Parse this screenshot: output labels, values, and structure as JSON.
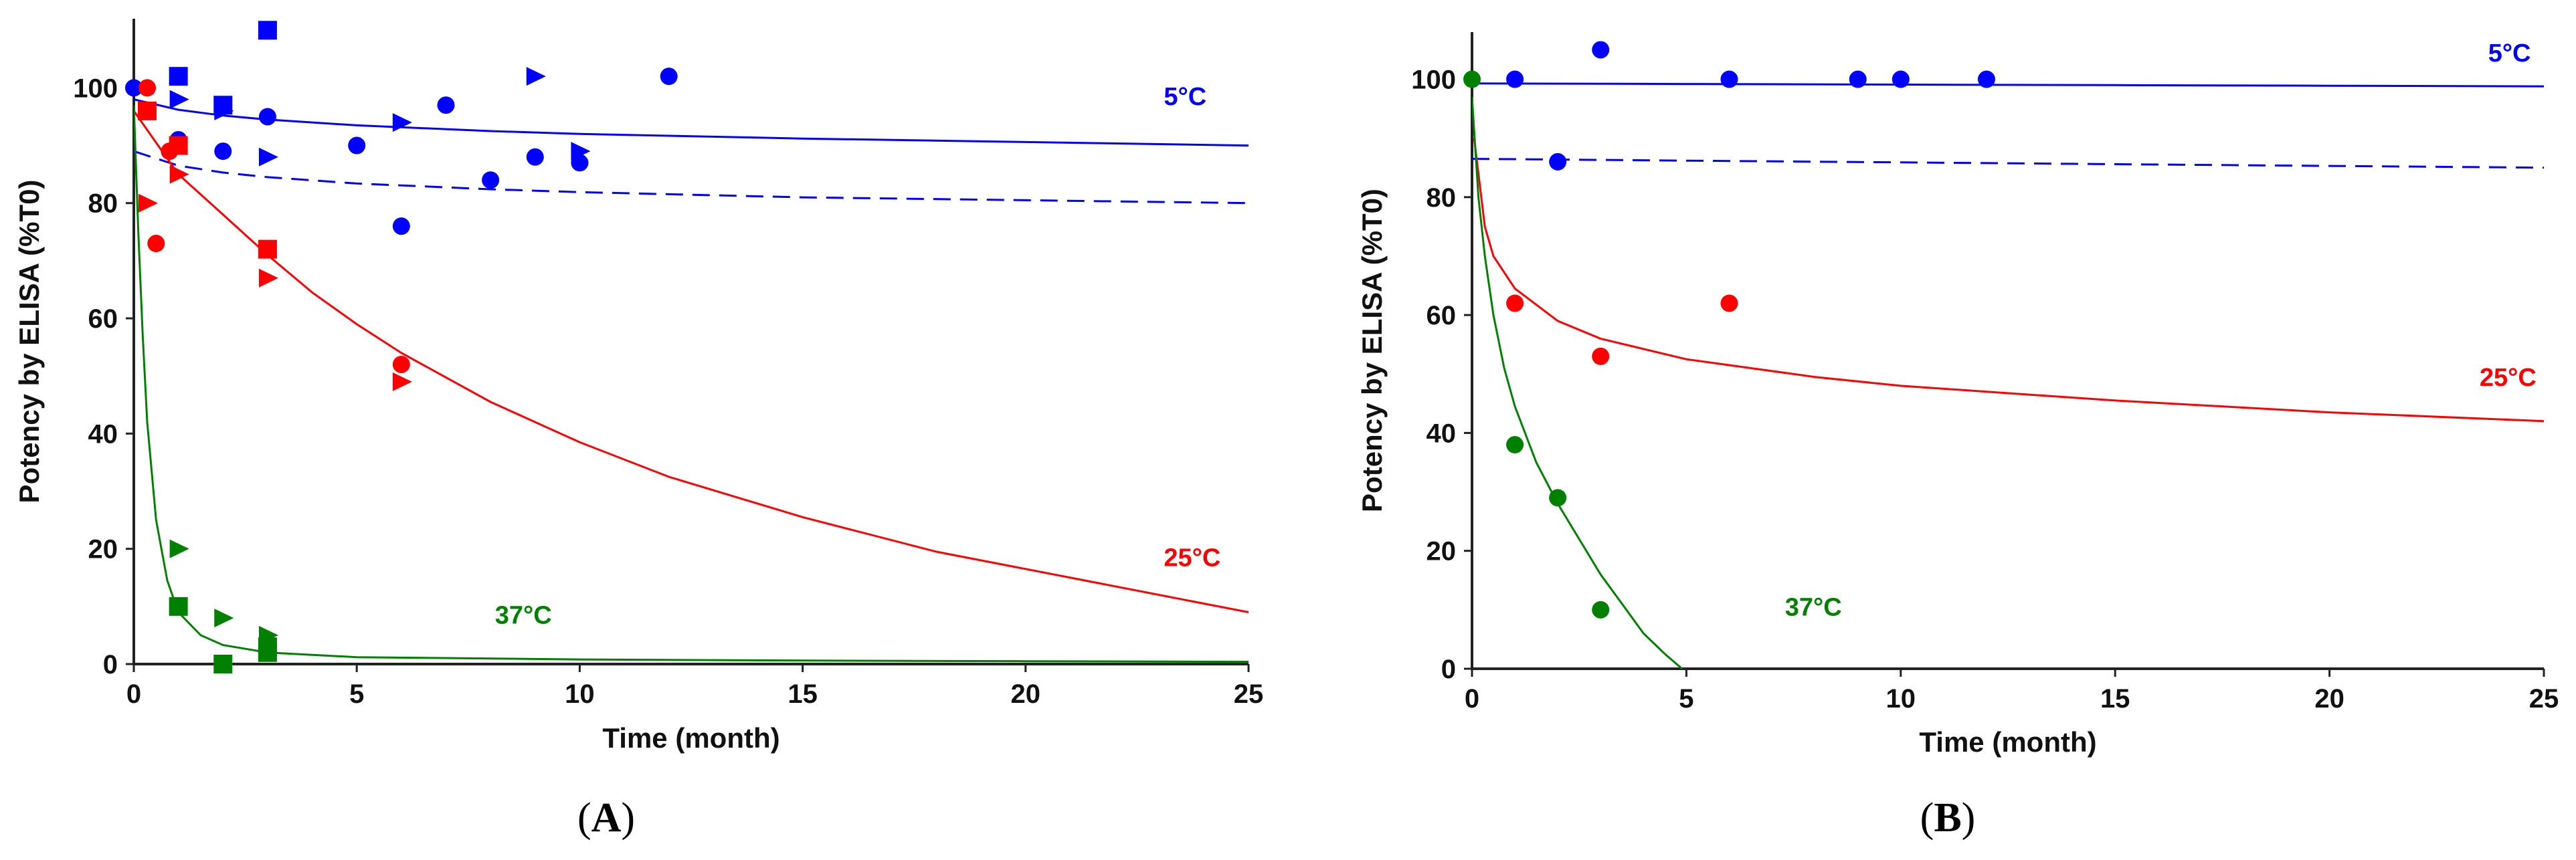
{
  "chart_data": [
    {
      "panel_label": "A",
      "type": "scatter",
      "xlabel": "Time (month)",
      "ylabel": "Potency by ELISA (%T0)",
      "xlim": [
        0,
        25
      ],
      "ylim": [
        0,
        112
      ],
      "xticks": [
        0,
        5,
        10,
        15,
        20,
        25
      ],
      "yticks": [
        0,
        20,
        40,
        60,
        80,
        100
      ],
      "grid": false,
      "series": [
        {
          "name": "5°C",
          "color": "#0000ff",
          "points": [
            {
              "marker": "circle",
              "x": 0,
              "y": 100
            },
            {
              "marker": "circle",
              "x": 1,
              "y": 91
            },
            {
              "marker": "circle",
              "x": 2,
              "y": 89
            },
            {
              "marker": "circle",
              "x": 3,
              "y": 95
            },
            {
              "marker": "circle",
              "x": 5,
              "y": 90
            },
            {
              "marker": "circle",
              "x": 6,
              "y": 76
            },
            {
              "marker": "circle",
              "x": 7,
              "y": 97
            },
            {
              "marker": "circle",
              "x": 8,
              "y": 84
            },
            {
              "marker": "circle",
              "x": 9,
              "y": 88
            },
            {
              "marker": "circle",
              "x": 10,
              "y": 87
            },
            {
              "marker": "circle",
              "x": 12,
              "y": 102
            },
            {
              "marker": "square",
              "x": 1,
              "y": 102
            },
            {
              "marker": "square",
              "x": 2,
              "y": 97
            },
            {
              "marker": "square",
              "x": 3,
              "y": 110
            },
            {
              "marker": "triangle",
              "x": 1,
              "y": 98
            },
            {
              "marker": "triangle",
              "x": 2,
              "y": 96
            },
            {
              "marker": "triangle",
              "x": 3,
              "y": 88
            },
            {
              "marker": "triangle",
              "x": 6,
              "y": 94
            },
            {
              "marker": "triangle",
              "x": 9,
              "y": 102
            },
            {
              "marker": "triangle",
              "x": 10,
              "y": 89
            }
          ],
          "fit": [
            {
              "style": "solid",
              "points": [
                [
                  0,
                  98
                ],
                [
                  1,
                  96.2
                ],
                [
                  2,
                  95.2
                ],
                [
                  3,
                  94.5
                ],
                [
                  5,
                  93.5
                ],
                [
                  8,
                  92.5
                ],
                [
                  10,
                  92
                ],
                [
                  15,
                  91.2
                ],
                [
                  20,
                  90.6
                ],
                [
                  25,
                  90
                ]
              ]
            },
            {
              "style": "dashed",
              "points": [
                [
                  0,
                  89
                ],
                [
                  1,
                  86.5
                ],
                [
                  2,
                  85.3
                ],
                [
                  3,
                  84.5
                ],
                [
                  5,
                  83.4
                ],
                [
                  8,
                  82.4
                ],
                [
                  10,
                  81.9
                ],
                [
                  15,
                  81
                ],
                [
                  20,
                  80.5
                ],
                [
                  25,
                  80
                ]
              ]
            }
          ]
        },
        {
          "name": "25°C",
          "color": "#ff0000",
          "points": [
            {
              "marker": "circle",
              "x": 0.3,
              "y": 100
            },
            {
              "marker": "circle",
              "x": 0.5,
              "y": 73
            },
            {
              "marker": "circle",
              "x": 0.8,
              "y": 89
            },
            {
              "marker": "circle",
              "x": 6,
              "y": 52
            },
            {
              "marker": "square",
              "x": 0.3,
              "y": 96
            },
            {
              "marker": "square",
              "x": 1,
              "y": 90
            },
            {
              "marker": "square",
              "x": 3,
              "y": 72
            },
            {
              "marker": "triangle",
              "x": 0.3,
              "y": 80
            },
            {
              "marker": "triangle",
              "x": 1,
              "y": 85
            },
            {
              "marker": "triangle",
              "x": 3,
              "y": 67
            },
            {
              "marker": "triangle",
              "x": 6,
              "y": 49
            }
          ],
          "fit": [
            {
              "style": "solid",
              "points": [
                [
                  0,
                  96
                ],
                [
                  1,
                  85
                ],
                [
                  2,
                  78
                ],
                [
                  3,
                  71
                ],
                [
                  4,
                  64.5
                ],
                [
                  5,
                  59
                ],
                [
                  6,
                  54
                ],
                [
                  8,
                  45.5
                ],
                [
                  10,
                  38.5
                ],
                [
                  12,
                  32.5
                ],
                [
                  15,
                  25.5
                ],
                [
                  18,
                  19.5
                ],
                [
                  20,
                  16.5
                ],
                [
                  22,
                  13.5
                ],
                [
                  25,
                  9
                ]
              ]
            }
          ]
        },
        {
          "name": "37°C",
          "color": "#008000",
          "points": [
            {
              "marker": "square",
              "x": 1,
              "y": 10
            },
            {
              "marker": "square",
              "x": 2,
              "y": 0
            },
            {
              "marker": "square",
              "x": 3,
              "y": 2
            },
            {
              "marker": "square",
              "x": 3,
              "y": 3
            },
            {
              "marker": "triangle",
              "x": 1,
              "y": 20
            },
            {
              "marker": "triangle",
              "x": 2,
              "y": 8
            },
            {
              "marker": "triangle",
              "x": 3,
              "y": 5
            }
          ],
          "fit": [
            {
              "style": "solid",
              "points": [
                [
                  0,
                  97
                ],
                [
                  0.1,
                  75
                ],
                [
                  0.2,
                  57
                ],
                [
                  0.3,
                  42
                ],
                [
                  0.5,
                  25
                ],
                [
                  0.75,
                  14.5
                ],
                [
                  1,
                  9
                ],
                [
                  1.5,
                  5
                ],
                [
                  2,
                  3.3
                ],
                [
                  3,
                  2
                ],
                [
                  5,
                  1.2
                ],
                [
                  10,
                  0.8
                ],
                [
                  15,
                  0.6
                ],
                [
                  20,
                  0.5
                ],
                [
                  25,
                  0.4
                ]
              ]
            }
          ]
        }
      ]
    },
    {
      "panel_label": "B",
      "type": "scatter",
      "xlabel": "Time (month)",
      "ylabel": "Potency by ELISA (%T0)",
      "xlim": [
        0,
        25
      ],
      "ylim": [
        0,
        108
      ],
      "xticks": [
        0,
        5,
        10,
        15,
        20,
        25
      ],
      "yticks": [
        0,
        20,
        40,
        60,
        80,
        100
      ],
      "grid": false,
      "series": [
        {
          "name": "5°C",
          "color": "#0000ff",
          "points": [
            {
              "marker": "circle",
              "x": 1,
              "y": 100
            },
            {
              "marker": "circle",
              "x": 2,
              "y": 86
            },
            {
              "marker": "circle",
              "x": 3,
              "y": 105
            },
            {
              "marker": "circle",
              "x": 6,
              "y": 100
            },
            {
              "marker": "circle",
              "x": 9,
              "y": 100
            },
            {
              "marker": "circle",
              "x": 10,
              "y": 100
            },
            {
              "marker": "circle",
              "x": 12,
              "y": 100
            }
          ],
          "fit": [
            {
              "style": "solid",
              "points": [
                [
                  0,
                  99.3
                ],
                [
                  5,
                  99.2
                ],
                [
                  10,
                  99.1
                ],
                [
                  15,
                  99
                ],
                [
                  20,
                  98.9
                ],
                [
                  25,
                  98.8
                ]
              ]
            },
            {
              "style": "dashed",
              "points": [
                [
                  0,
                  86.5
                ],
                [
                  5,
                  86.2
                ],
                [
                  10,
                  85.9
                ],
                [
                  15,
                  85.6
                ],
                [
                  20,
                  85.3
                ],
                [
                  25,
                  85
                ]
              ]
            }
          ]
        },
        {
          "name": "25°C",
          "color": "#ff0000",
          "points": [
            {
              "marker": "circle",
              "x": 1,
              "y": 62
            },
            {
              "marker": "circle",
              "x": 3,
              "y": 53
            },
            {
              "marker": "circle",
              "x": 6,
              "y": 62
            }
          ],
          "fit": [
            {
              "style": "solid",
              "points": [
                [
                  0.05,
                  90
                ],
                [
                  0.3,
                  75
                ],
                [
                  0.5,
                  70
                ],
                [
                  1,
                  64.5
                ],
                [
                  2,
                  59
                ],
                [
                  3,
                  56
                ],
                [
                  5,
                  52.5
                ],
                [
                  8,
                  49.5
                ],
                [
                  10,
                  48
                ],
                [
                  15,
                  45.5
                ],
                [
                  20,
                  43.5
                ],
                [
                  25,
                  42
                ]
              ]
            }
          ]
        },
        {
          "name": "37°C",
          "color": "#008000",
          "points": [
            {
              "marker": "circle",
              "x": 0,
              "y": 100
            },
            {
              "marker": "circle",
              "x": 1,
              "y": 38
            },
            {
              "marker": "circle",
              "x": 2,
              "y": 29
            },
            {
              "marker": "circle",
              "x": 3,
              "y": 10
            }
          ],
          "fit": [
            {
              "style": "solid",
              "points": [
                [
                  0,
                  97
                ],
                [
                  0.15,
                  80
                ],
                [
                  0.3,
                  70
                ],
                [
                  0.5,
                  60
                ],
                [
                  0.75,
                  51
                ],
                [
                  1,
                  44.5
                ],
                [
                  1.5,
                  35
                ],
                [
                  2,
                  28
                ],
                [
                  2.5,
                  22
                ],
                [
                  3,
                  16
                ],
                [
                  3.5,
                  11
                ],
                [
                  4,
                  6
                ],
                [
                  4.5,
                  2.5
                ],
                [
                  4.9,
                  0
                ]
              ]
            }
          ]
        }
      ]
    }
  ],
  "series_label_positions": [
    [
      {
        "series": "5°C",
        "x": 23.1,
        "y": 97
      },
      {
        "series": "25°C",
        "x": 23.1,
        "y": 17
      },
      {
        "series": "37°C",
        "x": 8.1,
        "y": 7
      }
    ],
    [
      {
        "series": "5°C",
        "x": 23.7,
        "y": 103
      },
      {
        "series": "25°C",
        "x": 23.5,
        "y": 48
      },
      {
        "series": "37°C",
        "x": 7.3,
        "y": 9
      }
    ]
  ]
}
